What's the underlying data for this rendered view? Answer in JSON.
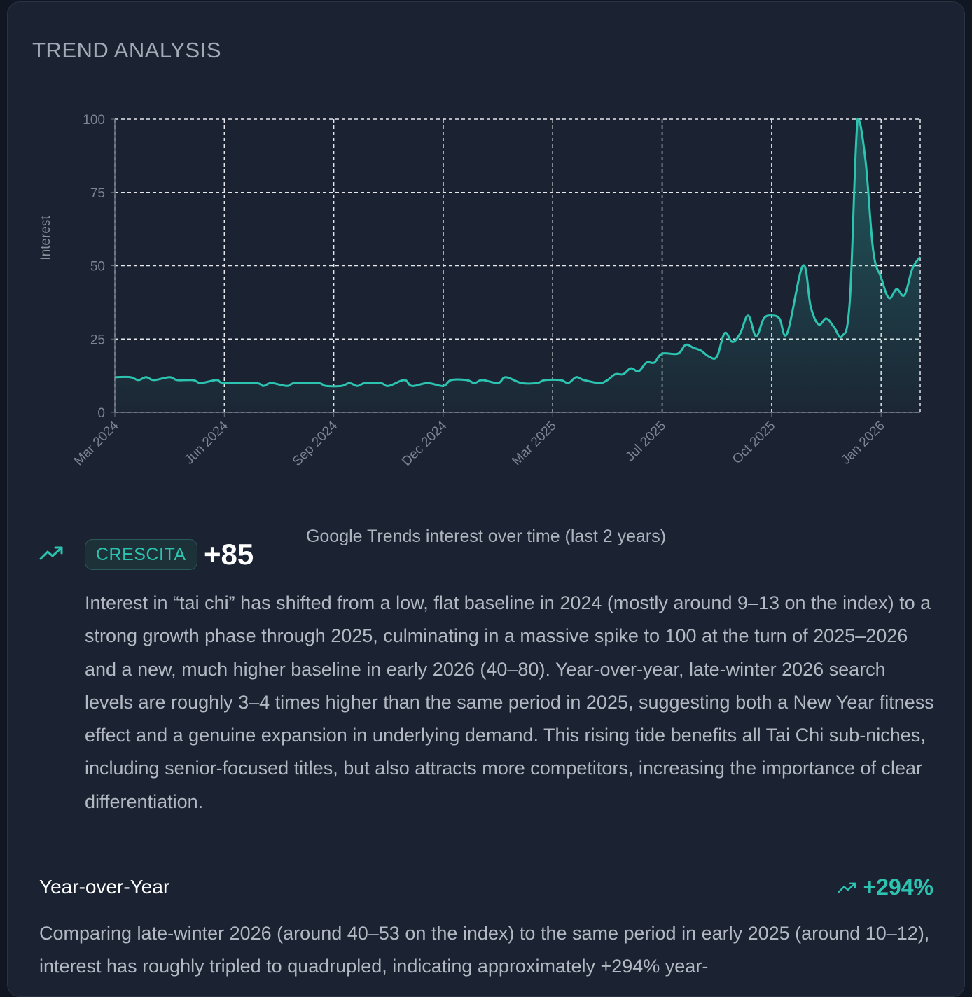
{
  "section_title": "TREND ANALYSIS",
  "chart_data": {
    "type": "area",
    "title": "",
    "caption": "Google Trends interest over time (last 2 years)",
    "xlabel": "",
    "ylabel": "Interest",
    "ylim": [
      0,
      100
    ],
    "xlim": [
      "2024-03-03",
      "2026-02-22"
    ],
    "yticks": [
      0,
      25,
      50,
      75,
      100
    ],
    "xticks": [
      {
        "date": "2024-03-03",
        "label": "Mar 2024"
      },
      {
        "date": "2024-06-09",
        "label": "Jun 2024"
      },
      {
        "date": "2024-09-15",
        "label": "Sep 2024"
      },
      {
        "date": "2024-12-22",
        "label": "Dec 2024"
      },
      {
        "date": "2025-03-30",
        "label": "Mar 2025"
      },
      {
        "date": "2025-07-06",
        "label": "Jul 2025"
      },
      {
        "date": "2025-10-12",
        "label": "Oct 2025"
      },
      {
        "date": "2026-01-18",
        "label": "Jan 2026"
      }
    ],
    "grid": true,
    "color": "#2cc4b0",
    "points": [
      [
        "2024-03-03",
        12
      ],
      [
        "2024-03-17",
        12
      ],
      [
        "2024-03-24",
        11
      ],
      [
        "2024-03-31",
        12
      ],
      [
        "2024-04-07",
        11
      ],
      [
        "2024-04-21",
        12
      ],
      [
        "2024-04-28",
        11
      ],
      [
        "2024-05-12",
        11
      ],
      [
        "2024-05-19",
        10
      ],
      [
        "2024-06-02",
        11
      ],
      [
        "2024-06-09",
        10
      ],
      [
        "2024-07-07",
        10
      ],
      [
        "2024-07-14",
        9
      ],
      [
        "2024-07-21",
        10
      ],
      [
        "2024-08-04",
        9
      ],
      [
        "2024-08-11",
        10
      ],
      [
        "2024-09-01",
        10
      ],
      [
        "2024-09-08",
        9
      ],
      [
        "2024-09-22",
        9
      ],
      [
        "2024-09-29",
        10
      ],
      [
        "2024-10-06",
        9
      ],
      [
        "2024-10-13",
        10
      ],
      [
        "2024-10-27",
        10
      ],
      [
        "2024-11-03",
        9
      ],
      [
        "2024-11-17",
        11
      ],
      [
        "2024-11-24",
        9
      ],
      [
        "2024-12-08",
        10
      ],
      [
        "2024-12-22",
        9
      ],
      [
        "2024-12-29",
        11
      ],
      [
        "2025-01-12",
        11
      ],
      [
        "2025-01-19",
        10
      ],
      [
        "2025-01-26",
        11
      ],
      [
        "2025-02-09",
        10
      ],
      [
        "2025-02-16",
        12
      ],
      [
        "2025-03-02",
        10
      ],
      [
        "2025-03-16",
        10
      ],
      [
        "2025-03-23",
        11
      ],
      [
        "2025-04-06",
        11
      ],
      [
        "2025-04-13",
        10
      ],
      [
        "2025-04-20",
        12
      ],
      [
        "2025-04-27",
        11
      ],
      [
        "2025-05-11",
        10
      ],
      [
        "2025-05-18",
        11
      ],
      [
        "2025-05-25",
        13
      ],
      [
        "2025-06-01",
        13
      ],
      [
        "2025-06-08",
        15
      ],
      [
        "2025-06-15",
        14
      ],
      [
        "2025-06-22",
        17
      ],
      [
        "2025-06-29",
        17
      ],
      [
        "2025-07-06",
        20
      ],
      [
        "2025-07-20",
        20
      ],
      [
        "2025-07-27",
        23
      ],
      [
        "2025-08-03",
        22
      ],
      [
        "2025-08-10",
        21
      ],
      [
        "2025-08-17",
        19
      ],
      [
        "2025-08-24",
        19
      ],
      [
        "2025-08-31",
        27
      ],
      [
        "2025-09-07",
        24
      ],
      [
        "2025-09-14",
        27
      ],
      [
        "2025-09-21",
        33
      ],
      [
        "2025-09-28",
        26
      ],
      [
        "2025-10-05",
        32
      ],
      [
        "2025-10-12",
        33
      ],
      [
        "2025-10-19",
        32
      ],
      [
        "2025-10-26",
        27
      ],
      [
        "2025-11-09",
        50
      ],
      [
        "2025-11-16",
        36
      ],
      [
        "2025-11-23",
        30
      ],
      [
        "2025-11-30",
        32
      ],
      [
        "2025-12-07",
        29
      ],
      [
        "2025-12-14",
        26
      ],
      [
        "2025-12-21",
        38
      ],
      [
        "2025-12-28",
        100
      ],
      [
        "2026-01-04",
        86
      ],
      [
        "2026-01-11",
        55
      ],
      [
        "2026-01-18",
        46
      ],
      [
        "2026-01-25",
        39
      ],
      [
        "2026-02-01",
        42
      ],
      [
        "2026-02-08",
        40
      ],
      [
        "2026-02-15",
        49
      ],
      [
        "2026-02-22",
        53
      ]
    ]
  },
  "summary": {
    "trend_icon": "trending-up-icon",
    "badge": "CRESCITA",
    "score": "+85",
    "text": "Interest in “tai chi” has shifted from a low, flat baseline in 2024 (mostly around 9–13 on the index) to a strong growth phase through 2025, culminating in a massive spike to 100 at the turn of 2025–2026 and a new, much higher baseline in early 2026 (40–80). Year-over-year, late-winter 2026 search levels are roughly 3–4 times higher than the same period in 2025, suggesting both a New Year fitness effect and a genuine expansion in underlying demand. This rising tide benefits all Tai Chi sub-niches, including senior-focused titles, but also attracts more competitors, increasing the importance of clear differentiation."
  },
  "yoy": {
    "label": "Year-over-Year",
    "value": "+294%",
    "text": "Comparing late-winter 2026 (around 40–53 on the index) to the same period in early 2025 (around 10–12), interest has roughly tripled to quadrupled, indicating approximately +294% year-"
  },
  "colors": {
    "accent": "#2cc4b0",
    "card": "#1b2332"
  }
}
